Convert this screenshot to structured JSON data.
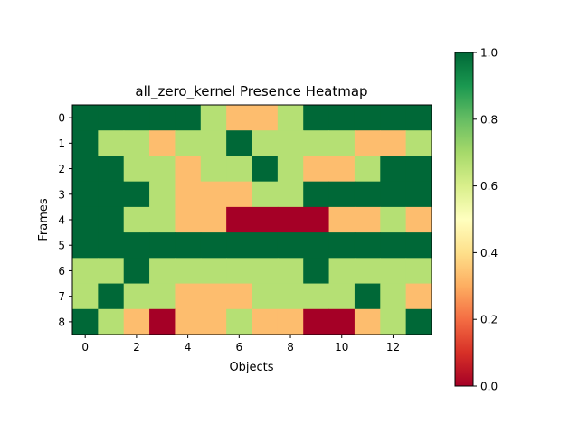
{
  "chart_data": {
    "type": "heatmap",
    "title": "all_zero_kernel Presence Heatmap",
    "xlabel": "Objects",
    "ylabel": "Frames",
    "x_ticks": [
      "0",
      "2",
      "4",
      "6",
      "8",
      "10",
      "12"
    ],
    "x_tick_values": [
      0,
      2,
      4,
      6,
      8,
      10,
      12
    ],
    "y_ticks": [
      "0",
      "1",
      "2",
      "3",
      "4",
      "5",
      "6",
      "7",
      "8"
    ],
    "y_tick_values": [
      0,
      1,
      2,
      3,
      4,
      5,
      6,
      7,
      8
    ],
    "colorbar_ticks": [
      "0.0",
      "0.2",
      "0.4",
      "0.6",
      "0.8",
      "1.0"
    ],
    "colorbar_tick_values": [
      0,
      0.2,
      0.4,
      0.6,
      0.8,
      1.0
    ],
    "vmin": 0,
    "vmax": 1,
    "colormap": "RdYlGn",
    "values": [
      [
        1,
        1,
        1,
        1,
        1,
        0.67,
        0.33,
        0.33,
        0.67,
        1,
        1,
        1,
        1,
        1
      ],
      [
        1,
        0.67,
        0.67,
        0.33,
        0.67,
        0.67,
        1,
        0.67,
        0.67,
        0.67,
        0.67,
        0.33,
        0.33,
        0.67
      ],
      [
        1,
        1,
        0.67,
        0.67,
        0.33,
        0.67,
        0.67,
        1,
        0.67,
        0.33,
        0.33,
        0.67,
        1,
        1
      ],
      [
        1,
        1,
        1,
        0.67,
        0.33,
        0.33,
        0.33,
        0.67,
        0.67,
        1,
        1,
        1,
        1,
        1
      ],
      [
        1,
        1,
        0.67,
        0.67,
        0.33,
        0.33,
        0,
        0,
        0,
        0,
        0.33,
        0.33,
        0.67,
        0.33
      ],
      [
        1,
        1,
        1,
        1,
        1,
        1,
        1,
        1,
        1,
        1,
        1,
        1,
        1,
        1
      ],
      [
        0.67,
        0.67,
        1,
        0.67,
        0.67,
        0.67,
        0.67,
        0.67,
        0.67,
        1,
        0.67,
        0.67,
        0.67,
        0.67
      ],
      [
        0.67,
        1,
        0.67,
        0.67,
        0.33,
        0.33,
        0.33,
        0.67,
        0.67,
        0.67,
        0.67,
        1,
        0.67,
        0.33
      ],
      [
        1,
        0.67,
        0.33,
        0,
        0.33,
        0.33,
        0.67,
        0.33,
        0.33,
        0,
        0,
        0.33,
        0.67,
        1
      ]
    ]
  }
}
